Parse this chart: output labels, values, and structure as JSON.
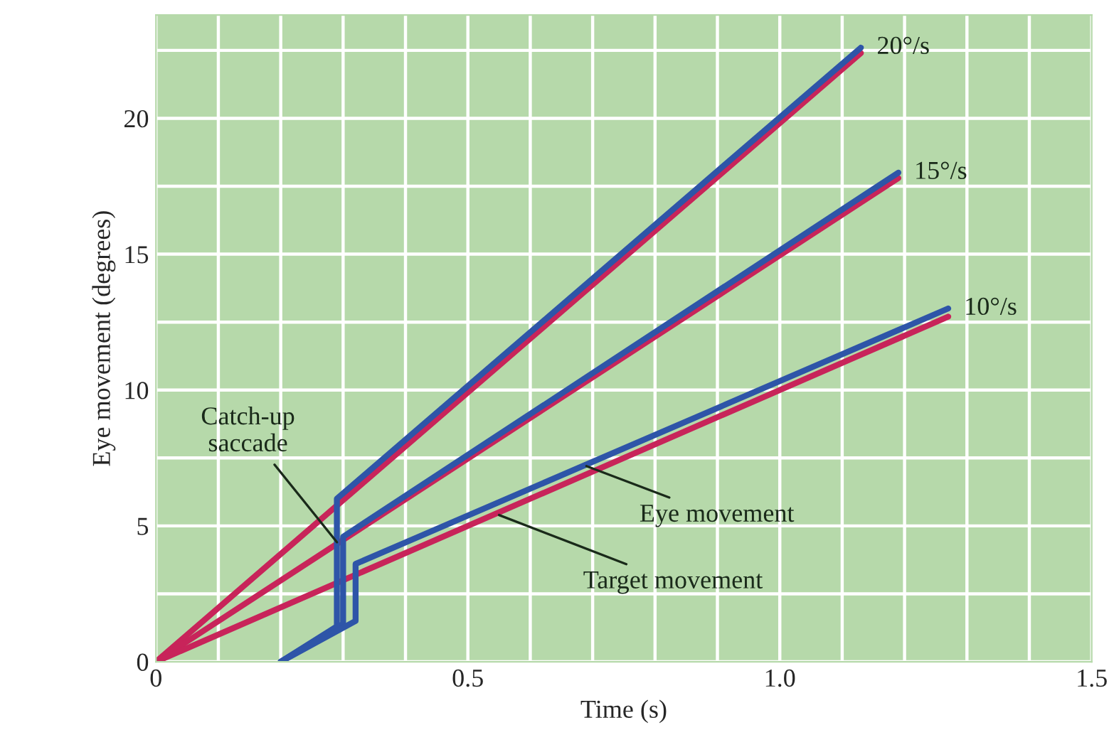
{
  "chart_data": {
    "type": "line",
    "xlabel": "Time (s)",
    "ylabel": "Eye movement (degrees)",
    "xlim": [
      0,
      1.5
    ],
    "ylim": [
      0,
      23.8
    ],
    "xticks": [
      0,
      {
        "value": 0.1,
        "label": null
      },
      {
        "value": 0.2,
        "label": null
      },
      {
        "value": 0.3,
        "label": null
      },
      {
        "value": 0.4,
        "label": null
      },
      0.5,
      {
        "value": 0.6,
        "label": null
      },
      {
        "value": 0.7,
        "label": null
      },
      {
        "value": 0.8,
        "label": null
      },
      {
        "value": 0.9,
        "label": null
      },
      {
        "value": 1,
        "label": "1.0"
      },
      {
        "value": 1.1,
        "label": null
      },
      {
        "value": 1.2,
        "label": null
      },
      {
        "value": 1.3,
        "label": null
      },
      {
        "value": 1.4,
        "label": null
      },
      1.5
    ],
    "yticks": [
      0,
      {
        "value": 2.5,
        "label": null
      },
      5,
      {
        "value": 7.5,
        "label": null
      },
      10,
      {
        "value": 12.5,
        "label": null
      },
      15,
      {
        "value": 17.5,
        "label": null
      },
      20,
      {
        "value": 22.5,
        "label": null
      }
    ],
    "grid": true,
    "legend": false,
    "series": [
      {
        "color": "#c8245a",
        "x": [
          0,
          1.13
        ],
        "values": [
          0,
          22.4
        ]
      },
      {
        "color": "#c8245a",
        "x": [
          0,
          1.19
        ],
        "values": [
          0,
          17.8
        ]
      },
      {
        "color": "#c8245a",
        "x": [
          0,
          1.27
        ],
        "values": [
          0,
          12.7
        ]
      },
      {
        "color": "#2e55a8",
        "x": [
          0.2,
          0.29,
          0.29,
          1.13
        ],
        "values": [
          0,
          1.3,
          6.0,
          22.6
        ]
      },
      {
        "color": "#2e55a8",
        "x": [
          0.2,
          0.3,
          0.3,
          1.19
        ],
        "values": [
          0,
          1.4,
          4.6,
          18.0
        ]
      },
      {
        "color": "#2e55a8",
        "x": [
          0.2,
          0.32,
          0.32,
          1.27
        ],
        "values": [
          0,
          1.5,
          3.6,
          13.0
        ]
      }
    ],
    "annotations": [
      {
        "text": "20°/s",
        "x": 1.13,
        "y": 22.6
      },
      {
        "text": "15°/s",
        "x": 1.19,
        "y": 18.0
      },
      {
        "text": "10°/s",
        "x": 1.27,
        "y": 13.0
      },
      {
        "text": "Catch-up\nsaccade",
        "x": 0.29,
        "y": 4.4
      },
      {
        "text": "Eye movement",
        "x": 0.69,
        "y": 7.2
      },
      {
        "text": "Target movement",
        "x": 0.55,
        "y": 5.4
      }
    ]
  }
}
